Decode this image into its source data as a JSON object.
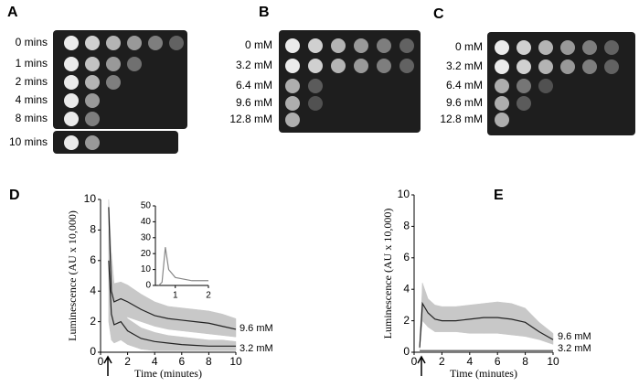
{
  "panels": [
    {
      "label": "A",
      "rows": [
        "0 mins",
        "1 mins",
        "2 mins",
        "4 mins",
        "8 mins",
        "10 mins"
      ]
    },
    {
      "label": "B",
      "rows": [
        "0 mM",
        "3.2 mM",
        "6.4 mM",
        "9.6 mM",
        "12.8 mM"
      ]
    },
    {
      "label": "C",
      "rows": [
        "0 mM",
        "3.2 mM",
        "6.4 mM",
        "9.6 mM",
        "12.8 mM"
      ]
    }
  ],
  "chart_data": [
    {
      "type": "line",
      "panel_label": "D",
      "y_label": "Luminescence (AU x 10,000)",
      "x_label": "Time (minutes)",
      "x": [
        0.6,
        0.8,
        1,
        1.5,
        2,
        3,
        4,
        5,
        6,
        7,
        8,
        9,
        10
      ],
      "series": [
        {
          "name": "9.6 mM",
          "color": "#222222",
          "band_color": "#c8c8c8",
          "values": [
            9.5,
            4,
            3.3,
            3.5,
            3.3,
            2.8,
            2.4,
            2.2,
            2.1,
            2.0,
            1.9,
            1.7,
            1.5
          ],
          "lower": [
            5,
            2.3,
            2.2,
            2.4,
            2.3,
            2.0,
            1.7,
            1.5,
            1.4,
            1.3,
            1.2,
            1.1,
            1.0
          ],
          "upper": [
            10,
            6.5,
            4.5,
            4.6,
            4.4,
            3.8,
            3.3,
            3.0,
            2.9,
            2.8,
            2.7,
            2.5,
            2.2
          ]
        },
        {
          "name": "3.2 mM",
          "color": "#222222",
          "band_color": "#c8c8c8",
          "values": [
            6,
            2.5,
            1.8,
            2.0,
            1.4,
            0.9,
            0.7,
            0.6,
            0.5,
            0.45,
            0.4,
            0.4,
            0.4
          ],
          "lower": [
            2,
            0.8,
            0.6,
            0.8,
            0.5,
            0.2,
            0.1,
            0.1,
            0.1,
            0.1,
            0.1,
            0.1,
            0.1
          ],
          "upper": [
            8,
            3.2,
            2.8,
            2.9,
            2.2,
            1.6,
            1.3,
            1.1,
            1.0,
            0.9,
            0.8,
            0.8,
            0.7
          ]
        }
      ],
      "xlim": [
        0,
        10
      ],
      "ylim": [
        0,
        10
      ],
      "xticks": [
        0,
        2,
        4,
        6,
        8,
        10
      ],
      "yticks": [
        0,
        2,
        4,
        6,
        8,
        10
      ]
    },
    {
      "type": "line",
      "x": [
        0.5,
        0.6,
        0.7,
        0.8,
        1,
        1.5,
        2
      ],
      "series": [
        {
          "color": "#888888",
          "values": [
            0,
            2,
            24,
            10,
            5,
            3,
            3
          ]
        }
      ],
      "xlim": [
        0.4,
        2
      ],
      "ylim": [
        0,
        50
      ],
      "xticks": [
        1,
        2
      ],
      "yticks": [
        0,
        10,
        20,
        30,
        40,
        50
      ]
    },
    {
      "type": "line",
      "panel_label": "E",
      "y_label": "Luminescence (AU x 10,000)",
      "x_label": "Time (minutes)",
      "x": [
        0.4,
        0.6,
        1,
        1.5,
        2,
        3,
        4,
        5,
        6,
        7,
        8,
        9,
        10
      ],
      "series": [
        {
          "name": "9.6 mM",
          "color": "#222222",
          "band_color": "#c8c8c8",
          "values": [
            0.3,
            3.1,
            2.5,
            2.1,
            2.0,
            2.0,
            2.1,
            2.2,
            2.2,
            2.1,
            1.9,
            1.3,
            0.8
          ],
          "lower": [
            0.2,
            2,
            1.6,
            1.3,
            1.3,
            1.3,
            1.2,
            1.2,
            1.2,
            1.1,
            1.0,
            0.8,
            0.5
          ],
          "upper": [
            0.5,
            4.4,
            3.4,
            3.0,
            2.9,
            2.9,
            3.0,
            3.1,
            3.2,
            3.1,
            2.8,
            1.9,
            1.2
          ]
        },
        {
          "name": "3.2 mM",
          "color": "#555555",
          "values": [
            0.1,
            0.1,
            0.1,
            0.1,
            0.1,
            0.1,
            0.1,
            0.1,
            0.1,
            0.1,
            0.1,
            0.1,
            0.1
          ]
        }
      ],
      "xlim": [
        0,
        10
      ],
      "ylim": [
        0,
        10
      ],
      "xticks": [
        0,
        2,
        4,
        6,
        8,
        10
      ],
      "yticks": [
        0,
        2,
        4,
        6,
        8,
        10
      ]
    }
  ]
}
